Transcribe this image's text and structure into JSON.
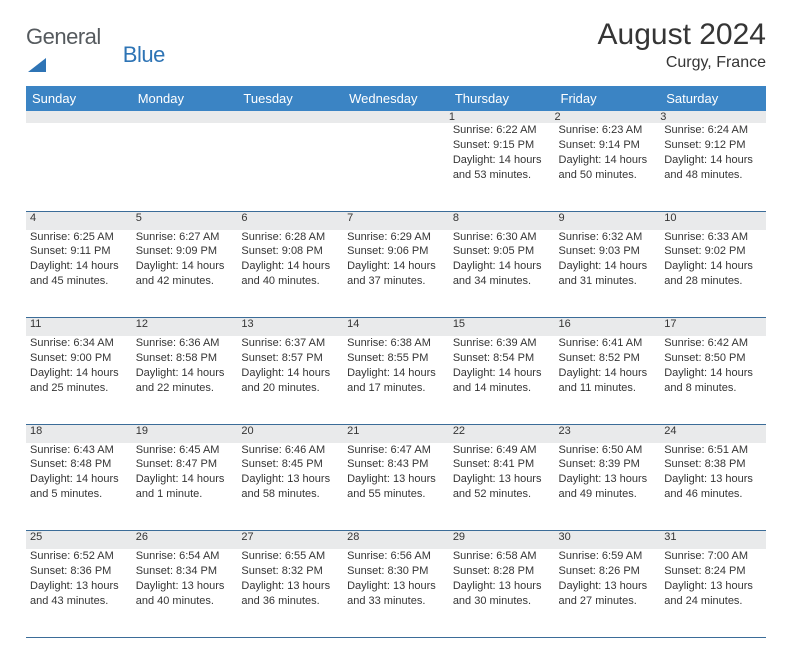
{
  "brand": {
    "part1": "General",
    "part2": "Blue"
  },
  "title": "August 2024",
  "location": "Curgy, France",
  "colors": {
    "header_bg": "#3b84c4",
    "header_text": "#ffffff",
    "daynum_bg": "#e9eaeb",
    "cell_border": "#3b6c98",
    "text": "#353535",
    "logo_gray": "#555a5e",
    "logo_blue": "#2e74b5"
  },
  "typography": {
    "title_fontsize": 30,
    "subtitle_fontsize": 16,
    "header_fontsize": 13,
    "body_fontsize": 11
  },
  "structure": {
    "type": "calendar",
    "columns": 7,
    "rows": 5
  },
  "weekdays": [
    "Sunday",
    "Monday",
    "Tuesday",
    "Wednesday",
    "Thursday",
    "Friday",
    "Saturday"
  ],
  "weeks": [
    [
      null,
      null,
      null,
      null,
      {
        "n": "1",
        "sr": "Sunrise: 6:22 AM",
        "ss": "Sunset: 9:15 PM",
        "dl": "Daylight: 14 hours and 53 minutes."
      },
      {
        "n": "2",
        "sr": "Sunrise: 6:23 AM",
        "ss": "Sunset: 9:14 PM",
        "dl": "Daylight: 14 hours and 50 minutes."
      },
      {
        "n": "3",
        "sr": "Sunrise: 6:24 AM",
        "ss": "Sunset: 9:12 PM",
        "dl": "Daylight: 14 hours and 48 minutes."
      }
    ],
    [
      {
        "n": "4",
        "sr": "Sunrise: 6:25 AM",
        "ss": "Sunset: 9:11 PM",
        "dl": "Daylight: 14 hours and 45 minutes."
      },
      {
        "n": "5",
        "sr": "Sunrise: 6:27 AM",
        "ss": "Sunset: 9:09 PM",
        "dl": "Daylight: 14 hours and 42 minutes."
      },
      {
        "n": "6",
        "sr": "Sunrise: 6:28 AM",
        "ss": "Sunset: 9:08 PM",
        "dl": "Daylight: 14 hours and 40 minutes."
      },
      {
        "n": "7",
        "sr": "Sunrise: 6:29 AM",
        "ss": "Sunset: 9:06 PM",
        "dl": "Daylight: 14 hours and 37 minutes."
      },
      {
        "n": "8",
        "sr": "Sunrise: 6:30 AM",
        "ss": "Sunset: 9:05 PM",
        "dl": "Daylight: 14 hours and 34 minutes."
      },
      {
        "n": "9",
        "sr": "Sunrise: 6:32 AM",
        "ss": "Sunset: 9:03 PM",
        "dl": "Daylight: 14 hours and 31 minutes."
      },
      {
        "n": "10",
        "sr": "Sunrise: 6:33 AM",
        "ss": "Sunset: 9:02 PM",
        "dl": "Daylight: 14 hours and 28 minutes."
      }
    ],
    [
      {
        "n": "11",
        "sr": "Sunrise: 6:34 AM",
        "ss": "Sunset: 9:00 PM",
        "dl": "Daylight: 14 hours and 25 minutes."
      },
      {
        "n": "12",
        "sr": "Sunrise: 6:36 AM",
        "ss": "Sunset: 8:58 PM",
        "dl": "Daylight: 14 hours and 22 minutes."
      },
      {
        "n": "13",
        "sr": "Sunrise: 6:37 AM",
        "ss": "Sunset: 8:57 PM",
        "dl": "Daylight: 14 hours and 20 minutes."
      },
      {
        "n": "14",
        "sr": "Sunrise: 6:38 AM",
        "ss": "Sunset: 8:55 PM",
        "dl": "Daylight: 14 hours and 17 minutes."
      },
      {
        "n": "15",
        "sr": "Sunrise: 6:39 AM",
        "ss": "Sunset: 8:54 PM",
        "dl": "Daylight: 14 hours and 14 minutes."
      },
      {
        "n": "16",
        "sr": "Sunrise: 6:41 AM",
        "ss": "Sunset: 8:52 PM",
        "dl": "Daylight: 14 hours and 11 minutes."
      },
      {
        "n": "17",
        "sr": "Sunrise: 6:42 AM",
        "ss": "Sunset: 8:50 PM",
        "dl": "Daylight: 14 hours and 8 minutes."
      }
    ],
    [
      {
        "n": "18",
        "sr": "Sunrise: 6:43 AM",
        "ss": "Sunset: 8:48 PM",
        "dl": "Daylight: 14 hours and 5 minutes."
      },
      {
        "n": "19",
        "sr": "Sunrise: 6:45 AM",
        "ss": "Sunset: 8:47 PM",
        "dl": "Daylight: 14 hours and 1 minute."
      },
      {
        "n": "20",
        "sr": "Sunrise: 6:46 AM",
        "ss": "Sunset: 8:45 PM",
        "dl": "Daylight: 13 hours and 58 minutes."
      },
      {
        "n": "21",
        "sr": "Sunrise: 6:47 AM",
        "ss": "Sunset: 8:43 PM",
        "dl": "Daylight: 13 hours and 55 minutes."
      },
      {
        "n": "22",
        "sr": "Sunrise: 6:49 AM",
        "ss": "Sunset: 8:41 PM",
        "dl": "Daylight: 13 hours and 52 minutes."
      },
      {
        "n": "23",
        "sr": "Sunrise: 6:50 AM",
        "ss": "Sunset: 8:39 PM",
        "dl": "Daylight: 13 hours and 49 minutes."
      },
      {
        "n": "24",
        "sr": "Sunrise: 6:51 AM",
        "ss": "Sunset: 8:38 PM",
        "dl": "Daylight: 13 hours and 46 minutes."
      }
    ],
    [
      {
        "n": "25",
        "sr": "Sunrise: 6:52 AM",
        "ss": "Sunset: 8:36 PM",
        "dl": "Daylight: 13 hours and 43 minutes."
      },
      {
        "n": "26",
        "sr": "Sunrise: 6:54 AM",
        "ss": "Sunset: 8:34 PM",
        "dl": "Daylight: 13 hours and 40 minutes."
      },
      {
        "n": "27",
        "sr": "Sunrise: 6:55 AM",
        "ss": "Sunset: 8:32 PM",
        "dl": "Daylight: 13 hours and 36 minutes."
      },
      {
        "n": "28",
        "sr": "Sunrise: 6:56 AM",
        "ss": "Sunset: 8:30 PM",
        "dl": "Daylight: 13 hours and 33 minutes."
      },
      {
        "n": "29",
        "sr": "Sunrise: 6:58 AM",
        "ss": "Sunset: 8:28 PM",
        "dl": "Daylight: 13 hours and 30 minutes."
      },
      {
        "n": "30",
        "sr": "Sunrise: 6:59 AM",
        "ss": "Sunset: 8:26 PM",
        "dl": "Daylight: 13 hours and 27 minutes."
      },
      {
        "n": "31",
        "sr": "Sunrise: 7:00 AM",
        "ss": "Sunset: 8:24 PM",
        "dl": "Daylight: 13 hours and 24 minutes."
      }
    ]
  ]
}
